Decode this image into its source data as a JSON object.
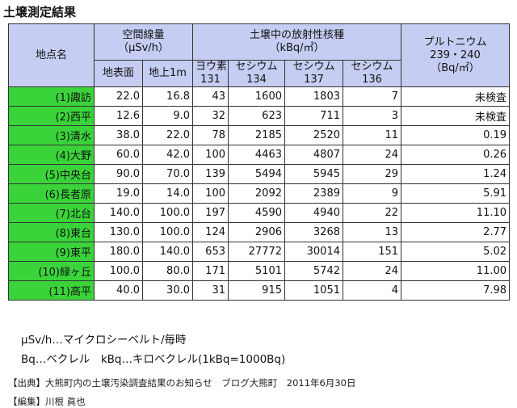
{
  "title": "土壌測定結果",
  "headers": {
    "site": "地点名",
    "dose_group_line1": "空間線量",
    "dose_group_line2": "（μSv/h）",
    "ground": "地表面",
    "above1m": "地上1m",
    "soil_group_line1": "土壌中の放射性核種",
    "soil_group_line2": "（kBq/㎡）",
    "i131_line1": "ヨウ素",
    "i131_line2": "131",
    "cs134_line1": "セシウム",
    "cs134_line2": "134",
    "cs137_line1": "セシウム",
    "cs137_line2": "137",
    "cs136_line1": "セシウム",
    "cs136_line2": "136",
    "pu_line1": "プルトニウム",
    "pu_line2": "239・240",
    "pu_line3": "（Bq/㎡）"
  },
  "rows": [
    {
      "site": "(1)諏訪",
      "ground": "22.0",
      "above1m": "16.8",
      "i131": "43",
      "cs134": "1600",
      "cs137": "1803",
      "cs136": "7",
      "pu": "未検査"
    },
    {
      "site": "(2)西平",
      "ground": "12.6",
      "above1m": "9.0",
      "i131": "32",
      "cs134": "623",
      "cs137": "711",
      "cs136": "3",
      "pu": "未検査"
    },
    {
      "site": "(3)清水",
      "ground": "38.0",
      "above1m": "22.0",
      "i131": "78",
      "cs134": "2185",
      "cs137": "2520",
      "cs136": "11",
      "pu": "0.19"
    },
    {
      "site": "(4)大野",
      "ground": "60.0",
      "above1m": "42.0",
      "i131": "100",
      "cs134": "4463",
      "cs137": "4807",
      "cs136": "24",
      "pu": "0.26"
    },
    {
      "site": "(5)中央台",
      "ground": "90.0",
      "above1m": "70.0",
      "i131": "139",
      "cs134": "5494",
      "cs137": "5945",
      "cs136": "29",
      "pu": "1.24"
    },
    {
      "site": "(6)長者原",
      "ground": "19.0",
      "above1m": "14.0",
      "i131": "100",
      "cs134": "2092",
      "cs137": "2389",
      "cs136": "9",
      "pu": "5.91"
    },
    {
      "site": "(7)北台",
      "ground": "140.0",
      "above1m": "100.0",
      "i131": "197",
      "cs134": "4590",
      "cs137": "4940",
      "cs136": "22",
      "pu": "11.10"
    },
    {
      "site": "(8)東台",
      "ground": "130.0",
      "above1m": "100.0",
      "i131": "124",
      "cs134": "2906",
      "cs137": "3268",
      "cs136": "13",
      "pu": "2.77"
    },
    {
      "site": "(9)東平",
      "ground": "180.0",
      "above1m": "140.0",
      "i131": "653",
      "cs134": "27772",
      "cs137": "30014",
      "cs136": "151",
      "pu": "5.02"
    },
    {
      "site": "(10)緑ヶ丘",
      "ground": "100.0",
      "above1m": "80.0",
      "i131": "171",
      "cs134": "5101",
      "cs137": "5742",
      "cs136": "24",
      "pu": "11.00"
    },
    {
      "site": "(11)高平",
      "ground": "40.0",
      "above1m": "30.0",
      "i131": "31",
      "cs134": "915",
      "cs137": "1051",
      "cs136": "4",
      "pu": "7.98"
    }
  ],
  "notes": {
    "unit1": "μSv/h…マイクロシーベルト/毎時",
    "unit2": "Bq…ベクレル　kBq…キロベクレル(1kBq=1000Bq)"
  },
  "source": {
    "line": "【出典】大熊町内の土壌汚染調査結果のお知らせ　ブログ大熊町　2011年6月30日",
    "editor": "【編集】川根 眞也"
  },
  "colors": {
    "header_bg": "#c6cdf2",
    "site_bg": "#3ad43a"
  }
}
